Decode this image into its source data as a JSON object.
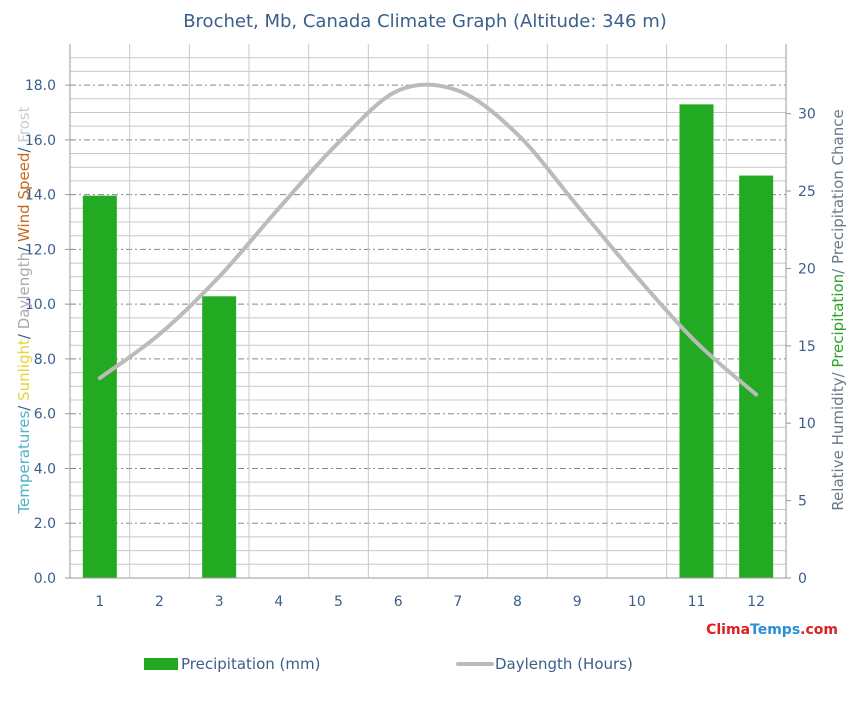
{
  "chart_data": {
    "type": "bar",
    "title": "Brochet, Mb, Canada Climate Graph (Altitude: 346 m)",
    "categories": [
      "1",
      "2",
      "3",
      "4",
      "5",
      "6",
      "7",
      "8",
      "9",
      "10",
      "11",
      "12"
    ],
    "left_axis": {
      "ylim": [
        0,
        19.5
      ],
      "ticks": [
        "0.0",
        "2.0",
        "4.0",
        "6.0",
        "8.0",
        "10.0",
        "12.0",
        "14.0",
        "16.0",
        "18.0"
      ],
      "label_parts": [
        {
          "text": "Temperatures",
          "color": "#4fb3c8"
        },
        {
          "text": "/ ",
          "color": "#3a5f8a"
        },
        {
          "text": "Sunlight",
          "color": "#e8d33a"
        },
        {
          "text": "/ ",
          "color": "#3a5f8a"
        },
        {
          "text": "Daylength",
          "color": "#aaaaaa"
        },
        {
          "text": "/ ",
          "color": "#3a5f8a"
        },
        {
          "text": "Wind Speed",
          "color": "#c86a1e"
        },
        {
          "text": "/ ",
          "color": "#3a5f8a"
        },
        {
          "text": "Frost",
          "color": "#cccccc"
        }
      ]
    },
    "right_axis": {
      "ylim": [
        0,
        34.5
      ],
      "ticks": [
        "0",
        "5",
        "10",
        "15",
        "20",
        "25",
        "30"
      ],
      "label_parts": [
        {
          "text": "Relative Humidity",
          "color": "#6a7a8a"
        },
        {
          "text": "/ ",
          "color": "#6a7a8a"
        },
        {
          "text": "Precipitation",
          "color": "#2aa52a"
        },
        {
          "text": "/ ",
          "color": "#6a7a8a"
        },
        {
          "text": "Precipitation Chance",
          "color": "#6a7a8a"
        }
      ]
    },
    "series": [
      {
        "name": "Precipitation (mm)",
        "type": "bar",
        "axis": "right",
        "color": "#22aa22",
        "values": [
          24.7,
          0,
          18.2,
          0,
          0,
          0,
          0,
          0,
          0,
          0,
          30.6,
          26.0
        ]
      },
      {
        "name": "Daylength (Hours)",
        "type": "line",
        "axis": "left",
        "color": "#bbbbbb",
        "values": [
          7.3,
          8.9,
          11.0,
          13.5,
          15.9,
          17.8,
          17.8,
          16.2,
          13.6,
          11.0,
          8.6,
          6.7
        ]
      }
    ],
    "grid": true,
    "legend": "bottom"
  },
  "brand": {
    "part1": "Clima",
    "part2": "Temps",
    "part3": ".com",
    "color1": "#e02020",
    "color2": "#2a8fd8"
  }
}
